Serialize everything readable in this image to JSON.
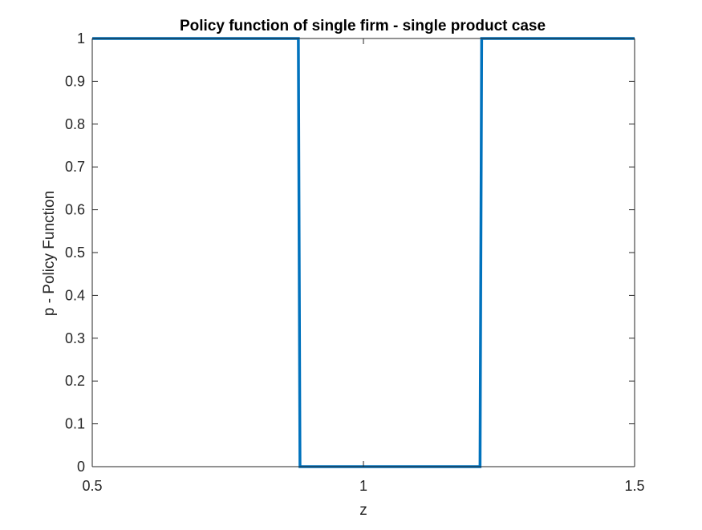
{
  "chart_data": {
    "type": "line",
    "title": "Policy function of single firm - single product case",
    "xlabel": "z",
    "ylabel": "p - Policy Function",
    "xlim": [
      0.5,
      1.5
    ],
    "ylim": [
      0,
      1
    ],
    "xticks": [
      0.5,
      1,
      1.5
    ],
    "xtick_labels": [
      "0.5",
      "1",
      "1.5"
    ],
    "yticks": [
      0,
      0.1,
      0.2,
      0.3,
      0.4,
      0.5,
      0.6,
      0.7,
      0.8,
      0.9,
      1
    ],
    "ytick_labels": [
      "0",
      "0.1",
      "0.2",
      "0.3",
      "0.4",
      "0.5",
      "0.6",
      "0.7",
      "0.8",
      "0.9",
      "1"
    ],
    "grid": false,
    "series": [
      {
        "color": "#0072BD",
        "x": [
          0.5,
          0.88,
          0.883,
          1.215,
          1.218,
          1.5
        ],
        "y": [
          1,
          1,
          0,
          0,
          1,
          1
        ]
      }
    ]
  }
}
